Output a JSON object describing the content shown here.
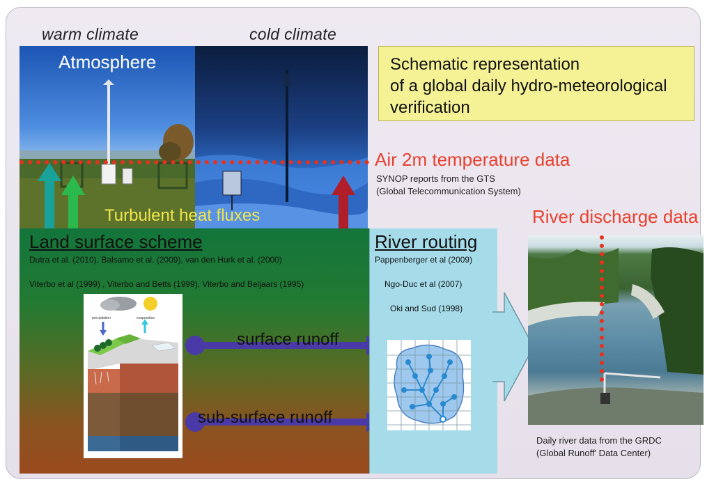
{
  "labels": {
    "warm_climate": "warm climate",
    "cold_climate": "cold climate",
    "atmosphere": "Atmosphere",
    "turbulent_heat_fluxes": "Turbulent heat fluxes"
  },
  "title_box": {
    "lines": [
      "Schematic representation",
      "of a global daily hydro-meteorological",
      "verification"
    ]
  },
  "air_temp": {
    "title": "Air 2m temperature data",
    "note1": "SYNOP reports from the GTS",
    "note2": "(Global Telecommunication System)"
  },
  "river_discharge": {
    "title": "River discharge data",
    "note1": "Daily river data from the GRDC",
    "note2": "(Global Runoff' Data Center)"
  },
  "land_surface": {
    "heading": "Land surface scheme",
    "refs": [
      "Dutra et al. (2010), Balsamo et al. (2009), van den Hurk et al. (2000)",
      "Viterbo et al (1999) , Viterbo and Betts (1999), Viterbo and Beljaars (1995)"
    ],
    "schematic_labels": {
      "precipitation": "precipitation",
      "evaporation": "evaporation"
    }
  },
  "river_routing": {
    "heading": "River routing",
    "refs": [
      "Pappenberger et al (2009)",
      "Ngo-Duc et al (2007)",
      "Oki and Sud (1998)"
    ]
  },
  "runoff": {
    "surface": "surface runoff",
    "subsurface": "sub-surface runoff"
  },
  "colors": {
    "red_accent": "#e8402e",
    "title_box_bg": "#f5f296",
    "runoff_arrow": "#4a3aa8",
    "teal_arrow": "#19a29a",
    "green_arrow": "#2bb84c",
    "dark_red_arrow": "#b01e2a"
  }
}
